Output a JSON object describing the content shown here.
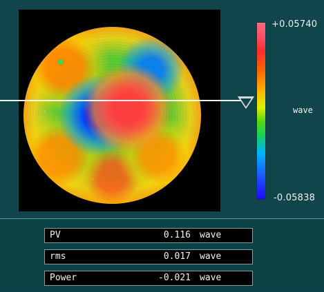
{
  "scale": {
    "top_label": "+0.05740",
    "middle_label": "wave",
    "bottom_label": "-0.05838"
  },
  "metrics": [
    {
      "label": "PV",
      "value": "0.116",
      "unit": "wave"
    },
    {
      "label": "rms",
      "value": "0.017",
      "unit": "wave"
    },
    {
      "label": "Power",
      "value": "-0.021",
      "unit": "wave"
    }
  ]
}
